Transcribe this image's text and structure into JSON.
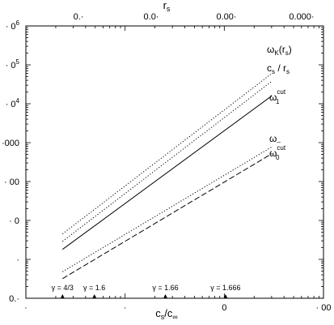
{
  "chart_data": {
    "type": "line",
    "title": "",
    "x_axis": {
      "label_main": "c",
      "label_sub1": "s",
      "label_mid": "/c",
      "label_sub2": "∞",
      "scale": "log",
      "range": [
        0.001,
        1
      ],
      "tick_labels": [
        "·",
        "·",
        "0",
        "· 00"
      ]
    },
    "x2_axis": {
      "label_main": "r",
      "label_sub": "s",
      "scale": "log",
      "tick_labels": [
        "0.·",
        "0.0·",
        "0.00·",
        "0.000·"
      ]
    },
    "y_axis": {
      "scale": "log",
      "range": [
        0.1,
        1000000
      ],
      "tick_labels": [
        {
          "base": "0.·",
          "exp": ""
        },
        {
          "base": "·",
          "exp": ""
        },
        {
          "base": "· 0",
          "exp": ""
        },
        {
          "base": "· 00",
          "exp": ""
        },
        {
          "base": "·000",
          "exp": ""
        },
        {
          "base": "· 0",
          "exp": "4"
        },
        {
          "base": "· 0",
          "exp": "5"
        },
        {
          "base": "· 0",
          "exp": "6"
        }
      ]
    },
    "series": [
      {
        "label": {
          "main": "ω",
          "sub": "K",
          "tail": "(r",
          "tailsub": "s",
          "close": ")"
        },
        "style": "dotted",
        "x": [
          0.00234,
          0.302
        ],
        "y": [
          4.5,
          60000
        ]
      },
      {
        "label": {
          "main": "c",
          "sub": "s",
          "tail": " / r",
          "tailsub": "s",
          "close": ""
        },
        "style": "dotted",
        "x": [
          0.00234,
          0.302
        ],
        "y": [
          2.9,
          38000
        ]
      },
      {
        "label": {
          "main": "ω",
          "sub": "1",
          "sup": "cut"
        },
        "style": "solid",
        "x": [
          0.00234,
          0.302
        ],
        "y": [
          1.8,
          16000
        ]
      },
      {
        "label": {
          "main": "ω",
          "sub": "–"
        },
        "style": "dotted",
        "x": [
          0.00234,
          0.302
        ],
        "y": [
          0.48,
          780
        ]
      },
      {
        "label": {
          "main": "ω",
          "sub": "0",
          "sup": "cut"
        },
        "style": "dashed",
        "x": [
          0.00234,
          0.302
        ],
        "y": [
          0.32,
          520
        ]
      }
    ],
    "annotations": [
      {
        "text": "γ = 4/3",
        "x": 0.00234
      },
      {
        "text": "γ = 1.6",
        "x": 0.0049
      },
      {
        "text": "γ = 1.66",
        "x": 0.0255
      },
      {
        "text": "γ = 1.666",
        "x": 0.103
      }
    ],
    "grid": false,
    "legend": "inline-right"
  }
}
